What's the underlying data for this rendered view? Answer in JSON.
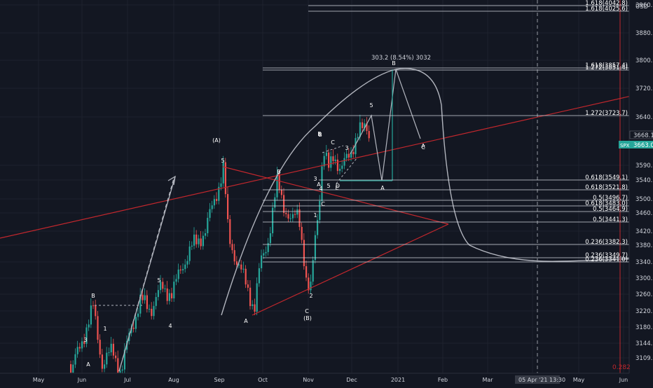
{
  "chart_data": {
    "type": "candlestick",
    "symbol": "SPX",
    "currency": "USD",
    "last_price": "3663.0",
    "prev_level": "3668.1",
    "price_axis_ticks": [
      "3960.0",
      "3880.0",
      "3800.0",
      "3720.0",
      "3640.0",
      "3590.0",
      "3540.0",
      "3500.0",
      "3460.0",
      "3420.0",
      "3380.0",
      "3340.0",
      "3300.0",
      "3260.0",
      "3220.0",
      "3180.0",
      "3144.0",
      "3109.0"
    ],
    "time_axis_labels": [
      "May",
      "Jun",
      "Jul",
      "Aug",
      "Sep",
      "Oct",
      "Nov",
      "Dec",
      "2021",
      "Feb",
      "Mar",
      "Apr",
      "May",
      "Jun"
    ],
    "crosshair_label": "05 Apr '21   13:30",
    "crosshair_value": "0.282",
    "measure_label": "303.2 (8.54%) 3032",
    "fib_levels": [
      {
        "text": "1.618(4042.8)"
      },
      {
        "text": "1.618(4025.6)"
      },
      {
        "text": "1.618(3857.4)"
      },
      {
        "text": "1.272(3851.4)"
      },
      {
        "text": "1.272(3723.7)"
      },
      {
        "text": "0.618(3549.1)"
      },
      {
        "text": "0.618(3521.8)"
      },
      {
        "text": "0.5(3496.7)"
      },
      {
        "text": "0.618(3483.0)"
      },
      {
        "text": "0.5(3464.9)"
      },
      {
        "text": "0.5(3441.3)"
      },
      {
        "text": "0.236(3382.3)"
      },
      {
        "text": "0.236(3349.7)"
      },
      {
        "text": "0.236(3341.0)"
      }
    ],
    "wave_labels": [
      "(A)",
      "5",
      "B",
      "A",
      "C",
      "(B)",
      "3",
      "4",
      "1",
      "2",
      "A",
      "B",
      "1",
      "3",
      "4",
      "5",
      "B",
      "C",
      "A",
      "3",
      "5",
      "B",
      "A",
      "C",
      "D",
      "E",
      "5",
      "B",
      "A",
      "C"
    ]
  },
  "colors": {
    "background": "#131722",
    "grid": "#1e222d",
    "up_candle": "#26a69a",
    "down_candle": "#ef5350",
    "trendline": "#c2272d",
    "drawing": "#b2b5be",
    "fib_line": "#d1d4dc"
  },
  "axis_badges": {
    "currency": "USD",
    "prev_level": "3668.1",
    "symbol": "SPX",
    "last_price": "3663.0"
  }
}
